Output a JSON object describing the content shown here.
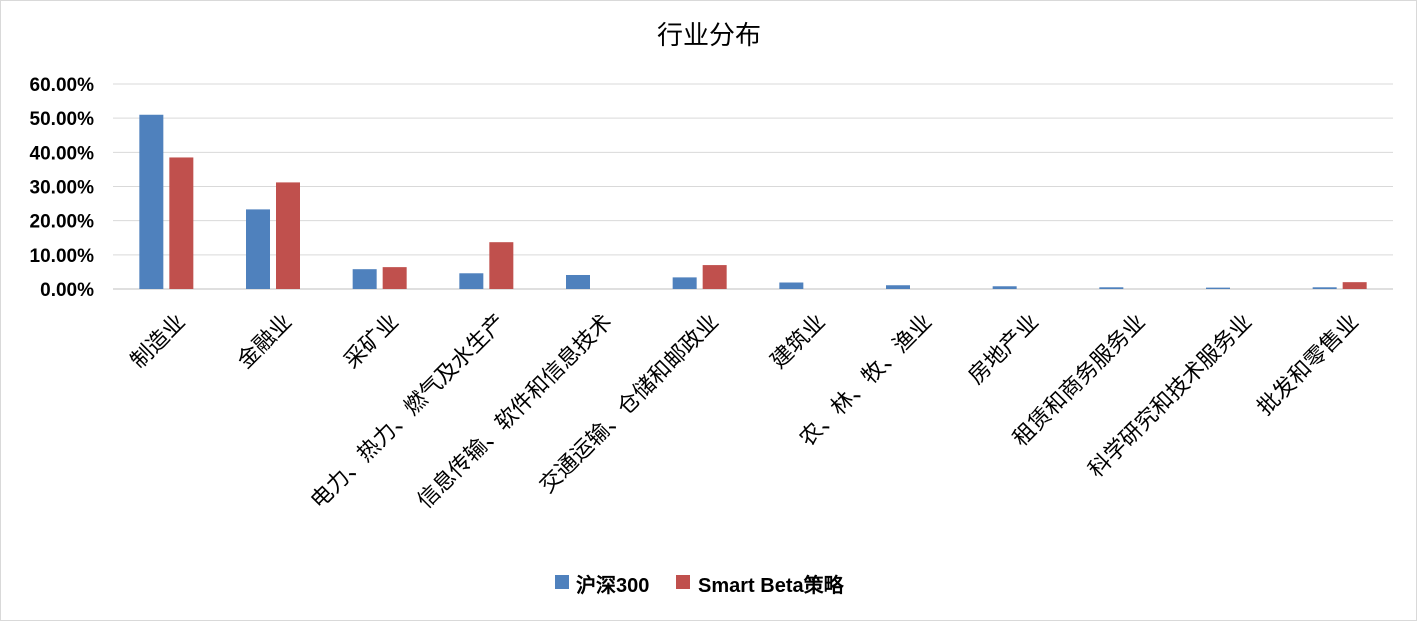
{
  "chart_data": {
    "type": "bar",
    "title": "行业分布",
    "categories": [
      "制造业",
      "金融业",
      "采矿业",
      "电力、热力、燃气及水生产",
      "信息传输、软件和信息技术",
      "交通运输、仓储和邮政业",
      "建筑业",
      "农、林、牧、渔业",
      "房地产业",
      "租赁和商务服务业",
      "科学研究和技术服务业",
      "批发和零售业"
    ],
    "series": [
      {
        "name": "沪深300",
        "color": "#4F81BD",
        "values": [
          51.0,
          23.3,
          5.8,
          4.6,
          4.1,
          3.4,
          1.9,
          1.1,
          0.8,
          0.5,
          0.4,
          0.5
        ]
      },
      {
        "name": "Smart Beta策略",
        "color": "#C0504D",
        "values": [
          38.5,
          31.2,
          6.4,
          13.7,
          0.0,
          7.0,
          0.0,
          0.0,
          0.0,
          0.0,
          0.0,
          2.0
        ]
      }
    ],
    "ylim": [
      0,
      60
    ],
    "yticks": [
      "0.00%",
      "10.00%",
      "20.00%",
      "30.00%",
      "40.00%",
      "50.00%",
      "60.00%"
    ],
    "grid": true,
    "legend": "bottom"
  }
}
